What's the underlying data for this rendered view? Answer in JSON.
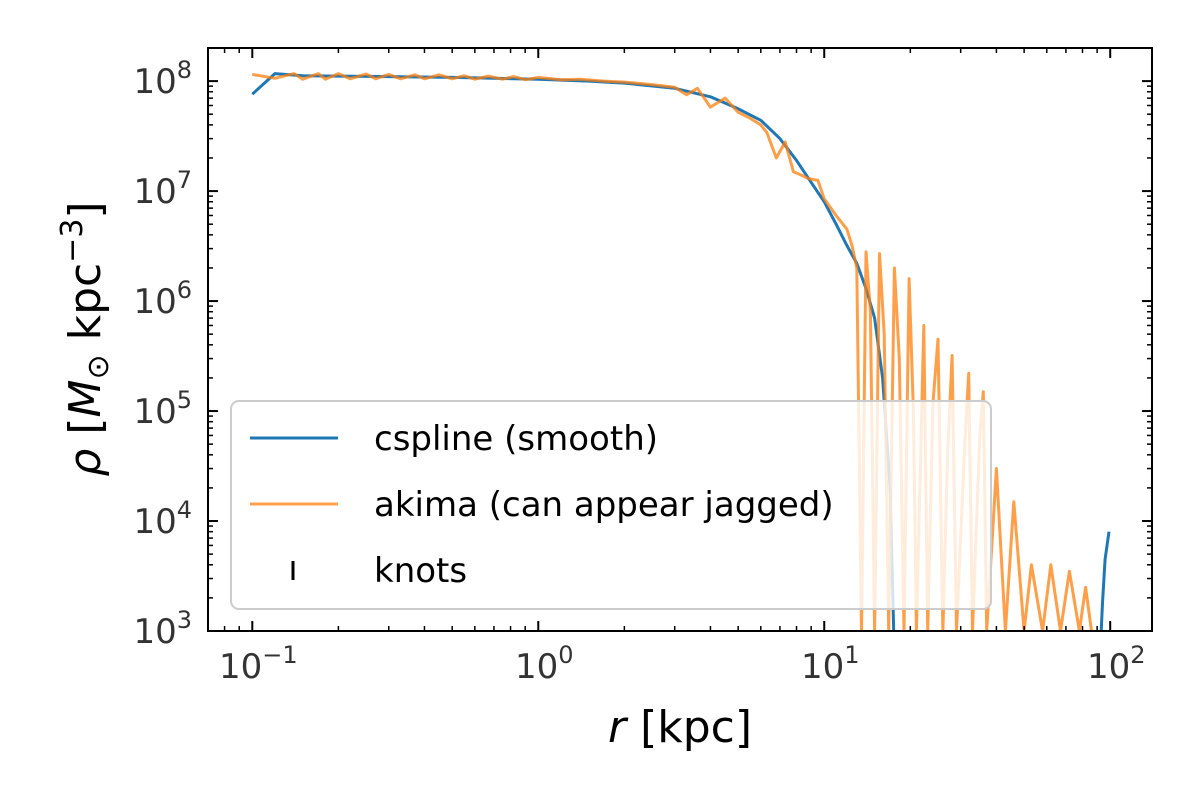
{
  "chart_data": {
    "type": "line",
    "xscale": "log",
    "yscale": "log",
    "xlim": [
      0.07,
      140
    ],
    "ylim": [
      1000,
      200000000
    ],
    "xlabel": {
      "italic": "r",
      "rest": " [kpc]"
    },
    "ylabel": {
      "italic": "ρ",
      "rest": " [",
      "mass": "M",
      "sun": "⊙",
      "unit": " kpc",
      "exp": "−3",
      "close": "]"
    },
    "xticks": [
      {
        "value": 0.1,
        "base": "10",
        "exp": "−1"
      },
      {
        "value": 1,
        "base": "10",
        "exp": "0"
      },
      {
        "value": 10,
        "base": "10",
        "exp": "1"
      },
      {
        "value": 100,
        "base": "10",
        "exp": "2"
      }
    ],
    "yticks": [
      {
        "value": 1000,
        "base": "10",
        "exp": "3"
      },
      {
        "value": 10000,
        "base": "10",
        "exp": "4"
      },
      {
        "value": 100000,
        "base": "10",
        "exp": "5"
      },
      {
        "value": 1000000,
        "base": "10",
        "exp": "6"
      },
      {
        "value": 10000000,
        "base": "10",
        "exp": "7"
      },
      {
        "value": 100000000,
        "base": "10",
        "exp": "8"
      }
    ],
    "grid": false,
    "legend_position": "lower-left",
    "series": [
      {
        "name": "cspline (smooth)",
        "color": "#1f77b4",
        "points": [
          [
            0.1,
            76000000
          ],
          [
            0.12,
            117000000
          ],
          [
            0.15,
            112000000
          ],
          [
            0.2,
            111000000
          ],
          [
            0.3,
            110000000
          ],
          [
            0.5,
            108000000
          ],
          [
            0.7,
            106000000
          ],
          [
            1.0,
            104000000
          ],
          [
            1.5,
            100000000
          ],
          [
            2.0,
            96000000
          ],
          [
            3.0,
            86000000
          ],
          [
            4.0,
            72000000
          ],
          [
            5.0,
            56000000
          ],
          [
            6.0,
            44000000
          ],
          [
            7.0,
            30000000
          ],
          [
            8.0,
            19000000
          ],
          [
            9.0,
            12000000
          ],
          [
            10.0,
            8000000
          ],
          [
            11.0,
            5000000
          ],
          [
            12.0,
            3200000
          ],
          [
            13.0,
            2200000
          ],
          [
            14.0,
            1300000
          ],
          [
            15.0,
            700000
          ],
          [
            16.0,
            200000
          ],
          [
            17.0,
            20000
          ],
          [
            17.5,
            1000
          ]
        ],
        "tail": [
          [
            93.0,
            1000
          ],
          [
            94.0,
            1800
          ],
          [
            96.0,
            4500
          ],
          [
            99.0,
            8000
          ]
        ]
      },
      {
        "name": "akima (can appear jagged)",
        "color": "#ff7f0e",
        "points": [
          [
            0.1,
            115000000
          ],
          [
            0.12,
            106000000
          ],
          [
            0.14,
            117000000
          ],
          [
            0.15,
            104000000
          ],
          [
            0.17,
            117000000
          ],
          [
            0.18,
            104000000
          ],
          [
            0.2,
            117000000
          ],
          [
            0.22,
            105000000
          ],
          [
            0.25,
            116000000
          ],
          [
            0.27,
            105000000
          ],
          [
            0.3,
            115000000
          ],
          [
            0.33,
            105000000
          ],
          [
            0.37,
            114000000
          ],
          [
            0.4,
            105000000
          ],
          [
            0.45,
            114000000
          ],
          [
            0.5,
            105000000
          ],
          [
            0.55,
            112000000
          ],
          [
            0.6,
            104000000
          ],
          [
            0.67,
            111000000
          ],
          [
            0.75,
            104000000
          ],
          [
            0.82,
            110000000
          ],
          [
            0.9,
            103000000
          ],
          [
            1.0,
            108000000
          ],
          [
            1.2,
            103000000
          ],
          [
            1.4,
            104000000
          ],
          [
            1.7,
            100000000
          ],
          [
            2.0,
            98000000
          ],
          [
            2.5,
            93000000
          ],
          [
            3.0,
            88000000
          ],
          [
            3.3,
            75000000
          ],
          [
            3.6,
            86000000
          ],
          [
            4.0,
            58000000
          ],
          [
            4.5,
            70000000
          ],
          [
            5.0,
            52000000
          ],
          [
            5.5,
            46000000
          ],
          [
            6.0,
            40000000
          ],
          [
            6.3,
            34000000
          ],
          [
            6.8,
            20000000
          ],
          [
            7.3,
            28000000
          ],
          [
            7.8,
            15000000
          ],
          [
            8.3,
            14000000
          ],
          [
            8.8,
            13000000
          ],
          [
            9.5,
            12500000
          ],
          [
            10.0,
            8500000
          ],
          [
            11.0,
            6000000
          ],
          [
            12.0,
            4500000
          ],
          [
            12.5,
            3200000
          ],
          [
            13.0,
            2000000
          ],
          [
            13.5,
            1000
          ],
          [
            14.0,
            2800000
          ],
          [
            14.5,
            800000
          ],
          [
            15.0,
            1000
          ],
          [
            15.6,
            2700000
          ],
          [
            16.2,
            500000
          ],
          [
            16.8,
            1000
          ],
          [
            17.6,
            2000000
          ],
          [
            18.3,
            300000
          ],
          [
            19.0,
            1000
          ],
          [
            19.8,
            1600000
          ],
          [
            20.5,
            100000
          ],
          [
            21.0,
            1000
          ],
          [
            22.3,
            600000
          ],
          [
            23.0,
            1000
          ],
          [
            24.0,
            120000
          ],
          [
            25.0,
            450000
          ],
          [
            26.0,
            1000
          ],
          [
            27.0,
            40000
          ],
          [
            28.0,
            320000
          ],
          [
            29.0,
            1000
          ],
          [
            31.0,
            50000
          ],
          [
            32.0,
            220000
          ],
          [
            33.0,
            1000
          ],
          [
            35.0,
            60000
          ],
          [
            36.0,
            150000
          ],
          [
            37.0,
            1000
          ],
          [
            40.0,
            30000
          ],
          [
            43.0,
            1000
          ],
          [
            46.0,
            15000
          ],
          [
            50.0,
            1000
          ],
          [
            53.0,
            4000
          ],
          [
            58.0,
            1000
          ],
          [
            62.0,
            4000
          ],
          [
            67.0,
            1000
          ],
          [
            72.0,
            3500
          ],
          [
            78.0,
            1000
          ],
          [
            82.0,
            2500
          ],
          [
            86.0,
            1000
          ]
        ]
      },
      {
        "name": "knots",
        "color": "#000000",
        "marker": "vertical-line",
        "points": []
      }
    ]
  }
}
